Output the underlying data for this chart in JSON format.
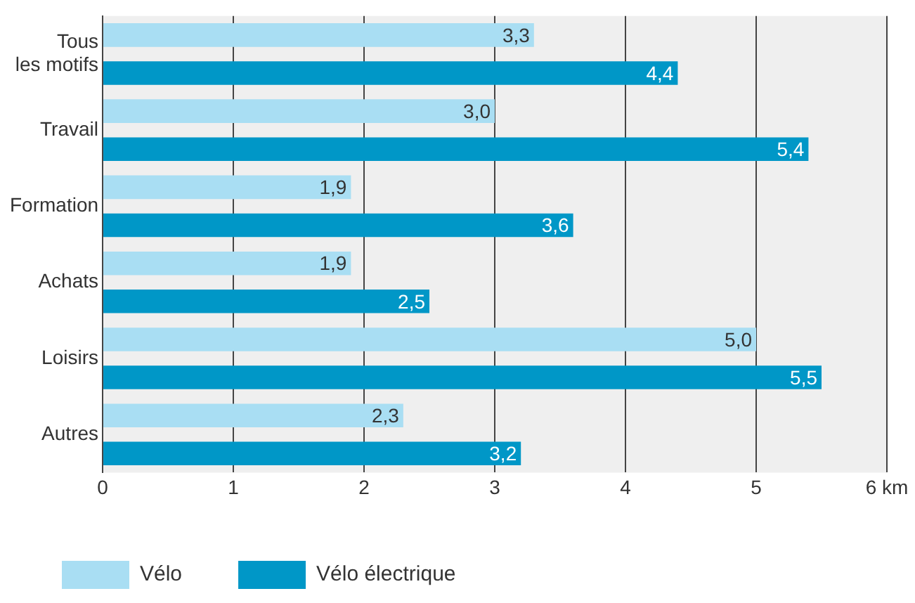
{
  "chart_data": {
    "type": "bar",
    "orientation": "horizontal",
    "categories": [
      "Tous les motifs",
      "Travail",
      "Formation",
      "Achats",
      "Loisirs",
      "Autres"
    ],
    "series": [
      {
        "name": "Vélo",
        "color": "#a9def3",
        "values": [
          3.3,
          3.0,
          1.9,
          1.9,
          5.0,
          2.3
        ],
        "value_labels": [
          "3,3",
          "3,0",
          "1,9",
          "1,9",
          "5,0",
          "2,3"
        ]
      },
      {
        "name": "Vélo électrique",
        "color": "#0097c7",
        "values": [
          4.4,
          5.4,
          3.6,
          2.5,
          5.5,
          3.2
        ],
        "value_labels": [
          "4,4",
          "5,4",
          "3,6",
          "2,5",
          "5,5",
          "3,2"
        ]
      }
    ],
    "xlim": [
      0,
      6
    ],
    "xticks": [
      0,
      1,
      2,
      3,
      4,
      5,
      {
        "value": 6,
        "label": "6 km"
      }
    ],
    "grid": "x",
    "legend": "bottom left"
  }
}
